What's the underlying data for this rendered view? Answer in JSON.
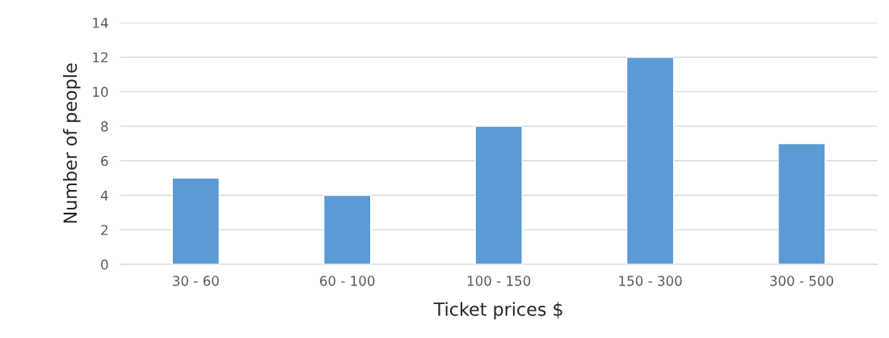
{
  "chart_data": {
    "type": "bar",
    "xlabel": "Ticket prices $",
    "ylabel": "Number of people",
    "categories": [
      "30 - 60",
      "60 - 100",
      "100 - 150",
      "150 - 300",
      "300 - 500"
    ],
    "values": [
      5,
      4,
      8,
      12,
      7
    ],
    "color": "#5b9bd5",
    "ylim": [
      0,
      14
    ],
    "yticks": [
      0,
      2,
      4,
      6,
      8,
      10,
      12,
      14
    ],
    "grid": "y"
  }
}
